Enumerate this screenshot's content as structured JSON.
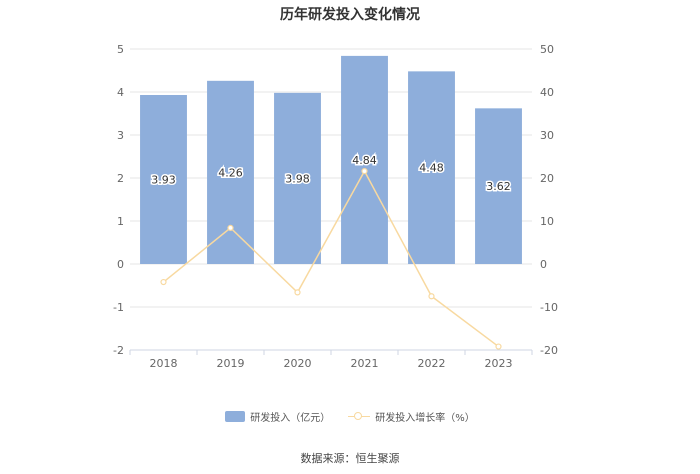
{
  "chart_data": {
    "type": "bar",
    "title": "历年研发投入变化情况",
    "categories": [
      "2018",
      "2019",
      "2020",
      "2021",
      "2022",
      "2023"
    ],
    "series": [
      {
        "name": "研发投入（亿元）",
        "type": "bar",
        "axis": "left",
        "values": [
          3.93,
          4.26,
          3.98,
          4.84,
          4.48,
          3.62
        ],
        "labels": [
          "3.93",
          "4.26",
          "3.98",
          "4.84",
          "4.48",
          "3.62"
        ]
      },
      {
        "name": "研发投入增长率（%）",
        "type": "line",
        "axis": "right",
        "values": [
          -4.2,
          8.4,
          -6.6,
          21.6,
          -7.5,
          -19.2
        ]
      }
    ],
    "y_left": {
      "ylim": [
        -2,
        5
      ],
      "ticks": [
        "5",
        "4",
        "3",
        "2",
        "1",
        "0",
        "-1",
        "-2"
      ]
    },
    "y_right": {
      "ylim": [
        -20,
        50
      ],
      "ticks": [
        "50",
        "40",
        "30",
        "20",
        "10",
        "0",
        "-10",
        "-20"
      ]
    },
    "grid": true,
    "legend_position": "bottom",
    "colors": {
      "bar": "#8eaedb",
      "line": "#f8d9a0",
      "grid": "#e6e6e6",
      "axis_text": "#666666"
    }
  },
  "source": "数据来源：恒生聚源"
}
